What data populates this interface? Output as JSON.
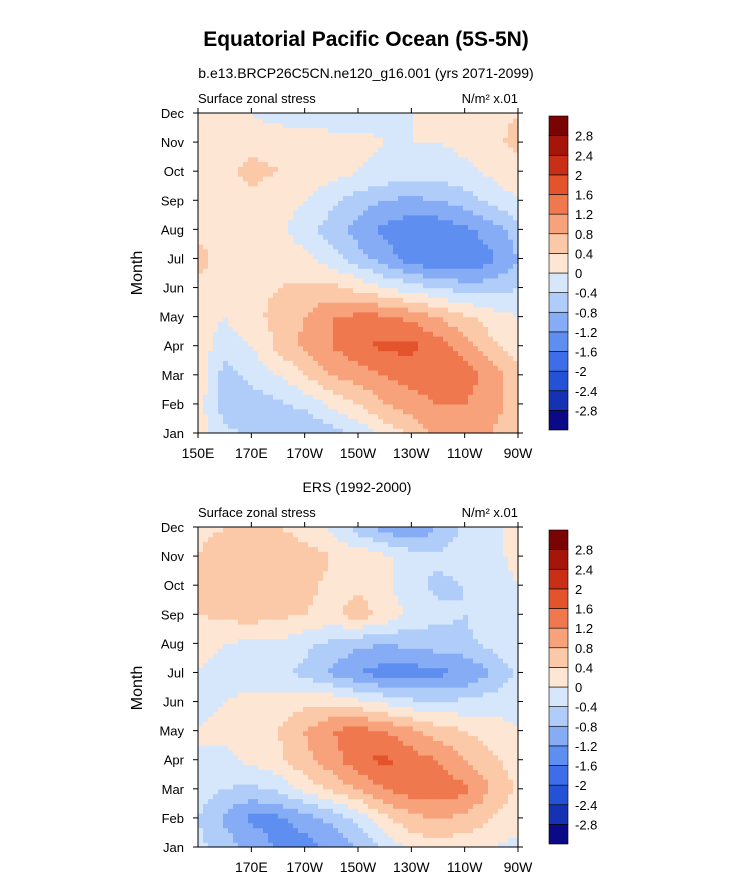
{
  "title": "Equatorial Pacific Ocean (5S-5N)",
  "chart_data": [
    {
      "type": "heatmap",
      "title": "b.e13.BRCP26C5CN.ne120_g16.001 (yrs 2071-2099)",
      "left_label": "Surface zonal stress",
      "right_label": "N/m² x.01",
      "ylabel": "Month",
      "xlabel": "",
      "months": [
        "Jan",
        "Feb",
        "Mar",
        "Apr",
        "May",
        "Jun",
        "Jul",
        "Aug",
        "Sep",
        "Oct",
        "Nov",
        "Dec"
      ],
      "x_ticks": [
        "150E",
        "170E",
        "170W",
        "150W",
        "130W",
        "110W",
        "90W"
      ],
      "x_lon": [
        150,
        170,
        190,
        210,
        230,
        250,
        270
      ],
      "xlim": [
        150,
        270
      ],
      "colorbar_levels": [
        "-2.8",
        "-2.4",
        "-2",
        "-1.6",
        "-1.2",
        "-0.8",
        "-0.4",
        "0",
        "0.4",
        "0.8",
        "1.2",
        "1.6",
        "2",
        "2.4",
        "2.8"
      ],
      "lon_grid": [
        150,
        160,
        170,
        180,
        190,
        200,
        210,
        220,
        230,
        240,
        250,
        260,
        270
      ],
      "values": [
        [
          0.2,
          -0.3,
          -0.5,
          -0.6,
          -0.8,
          -0.6,
          -0.3,
          0.1,
          0.5,
          0.9,
          1.0,
          0.8,
          0.5
        ],
        [
          0.2,
          -0.6,
          -0.6,
          -0.5,
          -0.3,
          0.1,
          0.4,
          0.8,
          1.0,
          1.2,
          1.2,
          1.0,
          0.6
        ],
        [
          0.3,
          -0.6,
          -0.3,
          0.0,
          0.4,
          0.8,
          1.0,
          1.2,
          1.4,
          1.5,
          1.4,
          1.0,
          0.6
        ],
        [
          0.2,
          -0.2,
          0.0,
          0.5,
          0.9,
          1.2,
          1.5,
          1.7,
          1.7,
          1.4,
          1.0,
          0.5,
          0.2
        ],
        [
          0.2,
          0.0,
          0.3,
          0.5,
          0.8,
          1.2,
          1.3,
          1.3,
          1.1,
          0.8,
          0.5,
          0.2,
          0.0
        ],
        [
          0.3,
          0.2,
          0.3,
          0.4,
          0.5,
          0.5,
          0.3,
          0.0,
          -0.2,
          -0.4,
          -0.6,
          -0.6,
          -0.4
        ],
        [
          0.5,
          0.3,
          0.3,
          0.2,
          0.1,
          -0.2,
          -0.6,
          -1.0,
          -1.4,
          -1.6,
          -1.6,
          -1.3,
          -0.8
        ],
        [
          0.3,
          0.2,
          0.2,
          0.1,
          -0.2,
          -0.6,
          -1.0,
          -1.3,
          -1.5,
          -1.5,
          -1.3,
          -1.0,
          -0.6
        ],
        [
          0.3,
          0.3,
          0.3,
          0.2,
          0.0,
          -0.3,
          -0.6,
          -0.8,
          -0.9,
          -0.8,
          -0.6,
          -0.3,
          0.0
        ],
        [
          0.3,
          0.3,
          0.5,
          0.4,
          0.3,
          0.2,
          0.0,
          -0.1,
          -0.2,
          -0.2,
          -0.1,
          0.1,
          0.3
        ],
        [
          0.2,
          0.3,
          0.3,
          0.3,
          0.3,
          0.2,
          0.1,
          0.0,
          0.0,
          0.0,
          0.1,
          0.3,
          0.5
        ],
        [
          0.1,
          0.1,
          0.0,
          -0.2,
          -0.3,
          -0.3,
          -0.2,
          -0.1,
          0.0,
          0.0,
          0.1,
          0.3,
          0.4
        ]
      ]
    },
    {
      "type": "heatmap",
      "title": "ERS (1992-2000)",
      "left_label": "Surface zonal stress",
      "right_label": "N/m² x.01",
      "ylabel": "Month",
      "xlabel": "",
      "months": [
        "Jan",
        "Feb",
        "Mar",
        "Apr",
        "May",
        "Jun",
        "Jul",
        "Aug",
        "Sep",
        "Oct",
        "Nov",
        "Dec"
      ],
      "x_ticks": [
        "170E",
        "170W",
        "150W",
        "130W",
        "110W",
        "90W"
      ],
      "x_lon": [
        170,
        190,
        210,
        230,
        250,
        270
      ],
      "xlim": [
        150,
        270
      ],
      "colorbar_levels": [
        "-2.8",
        "-2.4",
        "-2",
        "-1.6",
        "-1.2",
        "-0.8",
        "-0.4",
        "0",
        "0.4",
        "0.8",
        "1.2",
        "1.6",
        "2",
        "2.4",
        "2.8"
      ],
      "lon_grid": [
        150,
        160,
        170,
        180,
        190,
        200,
        210,
        220,
        230,
        240,
        250,
        260,
        270
      ],
      "values": [
        [
          -0.3,
          -0.6,
          -0.9,
          -1.3,
          -1.4,
          -1.1,
          -0.8,
          -0.3,
          0.1,
          0.2,
          0.1,
          0.0,
          -0.1
        ],
        [
          -0.4,
          -0.9,
          -1.3,
          -1.3,
          -1.0,
          -0.7,
          -0.3,
          0.3,
          0.7,
          0.8,
          0.7,
          0.4,
          0.1
        ],
        [
          -0.2,
          -0.4,
          -0.5,
          -0.3,
          0.1,
          0.5,
          0.8,
          1.2,
          1.4,
          1.5,
          1.3,
          0.8,
          0.3
        ],
        [
          0.0,
          -0.1,
          0.1,
          0.3,
          0.7,
          1.0,
          1.5,
          1.7,
          1.4,
          1.2,
          0.8,
          0.5,
          0.2
        ],
        [
          0.0,
          0.1,
          0.2,
          0.4,
          0.8,
          1.2,
          1.4,
          1.2,
          0.9,
          0.6,
          0.4,
          0.2,
          0.0
        ],
        [
          -0.1,
          0.0,
          0.1,
          0.2,
          0.3,
          0.3,
          0.1,
          -0.1,
          -0.3,
          -0.4,
          -0.3,
          -0.2,
          -0.1
        ],
        [
          0.0,
          -0.1,
          -0.2,
          -0.3,
          -0.5,
          -0.9,
          -1.2,
          -1.4,
          -1.4,
          -1.3,
          -1.2,
          -0.8,
          -0.3
        ],
        [
          0.1,
          0.0,
          -0.1,
          -0.1,
          -0.3,
          -0.5,
          -0.7,
          -0.8,
          -0.7,
          -0.6,
          -0.5,
          -0.3,
          -0.1
        ],
        [
          0.4,
          0.5,
          0.6,
          0.5,
          0.4,
          0.3,
          0.6,
          0.3,
          -0.1,
          -0.3,
          -0.4,
          -0.2,
          0.0
        ],
        [
          0.4,
          0.6,
          0.7,
          0.6,
          0.5,
          0.3,
          0.3,
          0.1,
          -0.3,
          -0.5,
          -0.4,
          -0.2,
          0.0
        ],
        [
          0.4,
          0.6,
          0.7,
          0.8,
          0.6,
          0.4,
          0.3,
          0.1,
          -0.2,
          -0.3,
          -0.2,
          -0.1,
          0.1
        ],
        [
          0.3,
          0.4,
          0.5,
          0.4,
          0.2,
          -0.1,
          -0.6,
          -1.0,
          -1.2,
          -0.8,
          -0.3,
          -0.1,
          0.1
        ]
      ]
    }
  ]
}
